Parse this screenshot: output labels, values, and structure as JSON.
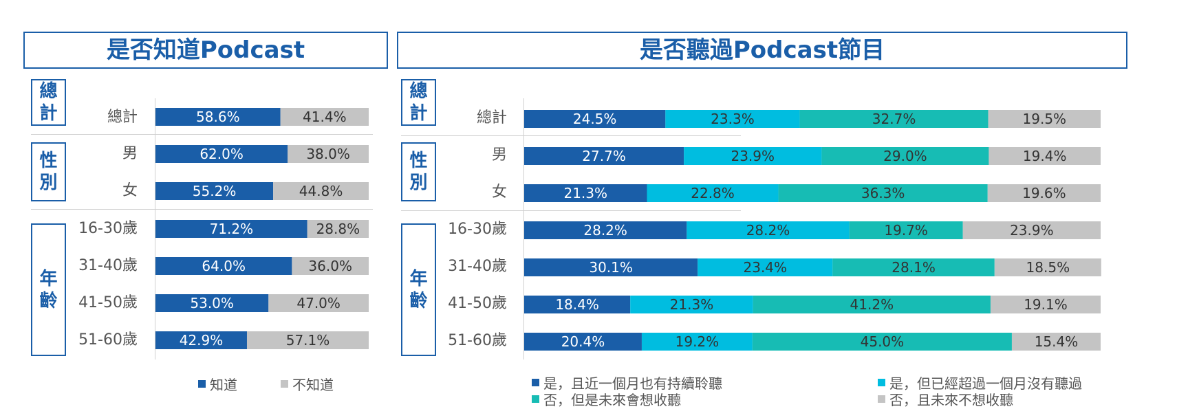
{
  "colors": {
    "know": "#1a5ea8",
    "not_know": "#c4c4c4",
    "recent": "#1a5ea8",
    "lapsed": "#00bde0",
    "future": "#17bcb4",
    "never": "#c4c4c4",
    "frame": "#1a5ea8"
  },
  "group_titles": {
    "total": [
      "總",
      "計"
    ],
    "gender": [
      "性",
      "別"
    ],
    "age": [
      "年",
      "齡"
    ]
  },
  "chart_data": [
    {
      "type": "bar",
      "stacked": true,
      "orientation": "horizontal",
      "title": "是否知道Podcast",
      "categories": [
        "總計",
        "男",
        "女",
        "16-30歲",
        "31-40歲",
        "41-50歲",
        "51-60歲"
      ],
      "series": [
        {
          "name": "知道",
          "color": "#1a5ea8",
          "values": [
            58.6,
            62.0,
            55.2,
            71.2,
            64.0,
            53.0,
            42.9
          ]
        },
        {
          "name": "不知道",
          "color": "#c4c4c4",
          "values": [
            41.4,
            38.0,
            44.8,
            28.8,
            36.0,
            47.0,
            57.1
          ]
        }
      ],
      "value_format": "%",
      "xlim": [
        0,
        100
      ],
      "legend_position": "bottom"
    },
    {
      "type": "bar",
      "stacked": true,
      "orientation": "horizontal",
      "title": "是否聽過Podcast節目",
      "categories": [
        "總計",
        "男",
        "女",
        "16-30歲",
        "31-40歲",
        "41-50歲",
        "51-60歲"
      ],
      "series": [
        {
          "name": "是，且近一個月也有持續聆聽",
          "color": "#1a5ea8",
          "values": [
            24.5,
            27.7,
            21.3,
            28.2,
            30.1,
            18.4,
            20.4
          ]
        },
        {
          "name": "是，但已經超過一個月沒有聽過",
          "color": "#00bde0",
          "values": [
            23.3,
            23.9,
            22.8,
            28.2,
            23.4,
            21.3,
            19.2
          ]
        },
        {
          "name": "否，但是未來會想收聽",
          "color": "#17bcb4",
          "values": [
            32.7,
            29.0,
            36.3,
            19.7,
            28.1,
            41.2,
            45.0
          ]
        },
        {
          "name": "否，且未來不想收聽",
          "color": "#c4c4c4",
          "values": [
            19.5,
            19.4,
            19.6,
            23.9,
            18.5,
            19.1,
            15.4
          ]
        }
      ],
      "value_format": "%",
      "xlim": [
        0,
        100
      ],
      "legend_position": "bottom"
    }
  ]
}
